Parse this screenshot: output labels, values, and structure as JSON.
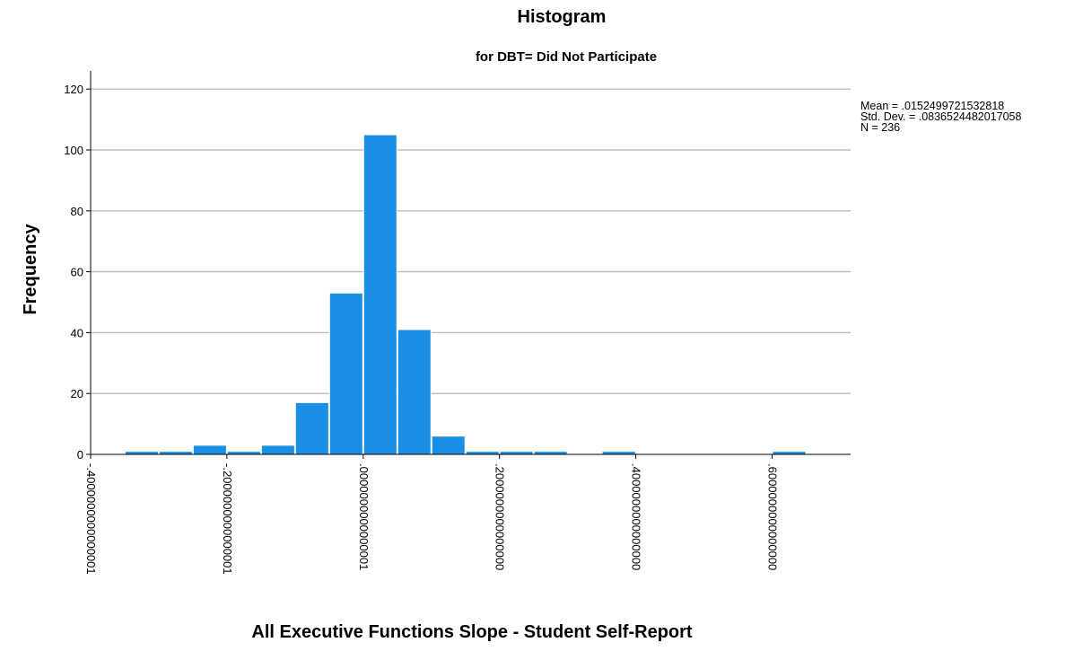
{
  "chart_data": {
    "type": "bar",
    "title": "Histogram",
    "subtitle": "for DBT= Did Not Participate",
    "xlabel": "All Executive Functions Slope - Student Self-Report",
    "ylabel": "Frequency",
    "ylim": [
      0,
      125
    ],
    "xlim": [
      -0.4,
      0.72
    ],
    "grid": true,
    "bar_color": "#1a8fe3",
    "y_ticks": [
      0,
      20,
      40,
      60,
      80,
      100,
      120
    ],
    "x_ticks": [
      {
        "value": -0.4,
        "label": "-.4000000000000001"
      },
      {
        "value": -0.2,
        "label": "-.2000000000000001"
      },
      {
        "value": 0.0,
        "label": ".0000000000000001"
      },
      {
        "value": 0.2,
        "label": ".2000000000000000"
      },
      {
        "value": 0.4,
        "label": ".4000000000000000"
      },
      {
        "value": 0.6,
        "label": ".6000000000000000"
      }
    ],
    "bins": [
      {
        "start": -0.35,
        "end": -0.3,
        "count": 1
      },
      {
        "start": -0.3,
        "end": -0.25,
        "count": 1
      },
      {
        "start": -0.25,
        "end": -0.2,
        "count": 3
      },
      {
        "start": -0.2,
        "end": -0.15,
        "count": 1
      },
      {
        "start": -0.15,
        "end": -0.1,
        "count": 3
      },
      {
        "start": -0.1,
        "end": -0.05,
        "count": 17
      },
      {
        "start": -0.05,
        "end": 0.0,
        "count": 53
      },
      {
        "start": 0.0,
        "end": 0.05,
        "count": 105
      },
      {
        "start": 0.05,
        "end": 0.1,
        "count": 41
      },
      {
        "start": 0.1,
        "end": 0.15,
        "count": 6
      },
      {
        "start": 0.15,
        "end": 0.2,
        "count": 1
      },
      {
        "start": 0.2,
        "end": 0.25,
        "count": 1
      },
      {
        "start": 0.25,
        "end": 0.3,
        "count": 1
      },
      {
        "start": 0.3,
        "end": 0.35,
        "count": 0
      },
      {
        "start": 0.35,
        "end": 0.4,
        "count": 1
      },
      {
        "start": 0.4,
        "end": 0.45,
        "count": 0
      },
      {
        "start": 0.45,
        "end": 0.5,
        "count": 0
      },
      {
        "start": 0.5,
        "end": 0.55,
        "count": 0
      },
      {
        "start": 0.55,
        "end": 0.6,
        "count": 0
      },
      {
        "start": 0.6,
        "end": 0.65,
        "count": 1
      }
    ],
    "stats": {
      "mean": "Mean = .0152499721532818",
      "std_dev": "Std. Dev. = .0836524482017058",
      "n": "N = 236"
    },
    "legend_placement": "right"
  }
}
